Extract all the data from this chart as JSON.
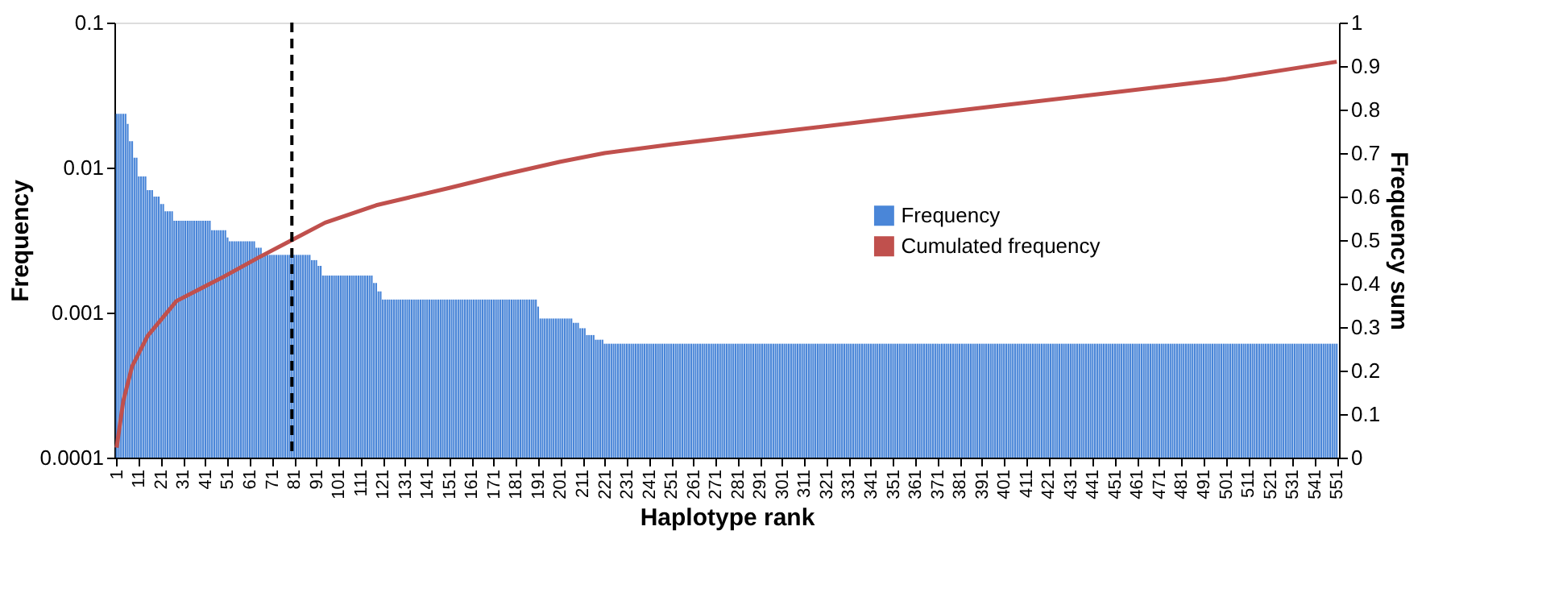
{
  "chart_data": {
    "type": "bar",
    "xlabel": "Haplotype rank",
    "ylabel": "Frequency",
    "y2label": "Frequency sum",
    "xlim": [
      0,
      552
    ],
    "xticks": [
      1,
      11,
      21,
      31,
      41,
      51,
      61,
      71,
      81,
      91,
      101,
      111,
      121,
      131,
      141,
      151,
      161,
      171,
      181,
      191,
      201,
      211,
      221,
      231,
      241,
      251,
      261,
      271,
      281,
      291,
      301,
      311,
      321,
      331,
      341,
      351,
      361,
      371,
      381,
      391,
      401,
      411,
      421,
      431,
      441,
      451,
      461,
      471,
      481,
      491,
      501,
      511,
      521,
      531,
      541,
      551
    ],
    "ylim": [
      0.0001,
      0.1
    ],
    "yticks": [
      0.0001,
      0.001,
      0.01,
      0.1
    ],
    "log": "y",
    "y2lim": [
      0,
      1
    ],
    "y2ticks": [
      0,
      0.1,
      0.2,
      0.3,
      0.4,
      0.5,
      0.6,
      0.7,
      0.8,
      0.9,
      1
    ],
    "grid": false,
    "legend": "right",
    "ref_lines": [
      {
        "axis": "x",
        "value": 80,
        "color": "#000000",
        "line_style": "dashed"
      }
    ],
    "x": [
      1,
      2,
      3,
      4,
      5,
      6,
      7,
      8,
      9,
      10,
      11,
      12,
      13,
      14,
      15,
      16,
      17,
      18,
      19,
      20,
      21,
      22,
      23,
      24,
      25,
      26,
      27,
      28,
      29,
      30,
      31,
      32,
      33,
      34,
      35,
      36,
      37,
      38,
      39,
      40,
      41,
      42,
      43,
      44,
      45,
      46,
      47,
      48,
      49,
      50,
      51,
      52,
      53,
      54,
      55,
      56,
      57,
      58,
      59,
      60,
      61,
      62,
      63,
      64,
      65,
      66,
      67,
      68,
      69,
      70,
      71,
      72,
      73,
      74,
      75,
      76,
      77,
      78,
      79,
      80,
      81,
      82,
      83,
      84,
      85,
      86,
      87,
      88,
      89,
      90,
      91,
      92,
      93,
      94,
      95,
      96,
      97,
      98,
      99,
      100,
      101,
      102,
      103,
      104,
      105,
      106,
      107,
      108,
      109,
      110,
      111,
      112,
      113,
      114,
      115,
      116,
      117,
      118,
      119,
      120,
      121,
      122,
      123,
      124,
      125,
      126,
      127,
      128,
      129,
      130,
      131,
      132,
      133,
      134,
      135,
      136,
      137,
      138,
      139,
      140,
      141,
      142,
      143,
      144,
      145,
      146,
      147,
      148,
      149,
      150,
      151,
      152,
      153,
      154,
      155,
      156,
      157,
      158,
      159,
      160,
      161,
      162,
      163,
      164,
      165,
      166,
      167,
      168,
      169,
      170,
      171,
      172,
      173,
      174,
      175,
      176,
      177,
      178,
      179,
      180,
      181,
      182,
      183,
      184,
      185,
      186,
      187,
      188,
      189,
      190,
      191,
      192,
      193,
      194,
      195,
      196,
      197,
      198,
      199,
      200,
      201,
      202,
      203,
      204,
      205,
      206,
      207,
      208,
      209,
      210,
      211,
      212,
      213,
      214,
      215,
      216,
      217,
      218,
      219,
      220,
      221,
      222,
      223,
      224,
      225,
      226,
      227,
      228,
      229,
      230,
      231,
      232,
      233,
      234,
      235,
      236,
      237,
      238,
      239,
      240,
      241,
      242,
      243,
      244,
      245,
      246,
      247,
      248,
      249,
      250,
      251,
      252,
      253,
      254,
      255,
      256,
      257,
      258,
      259,
      260,
      261,
      262,
      263,
      264,
      265,
      266,
      267,
      268,
      269,
      270,
      271,
      272,
      273,
      274,
      275,
      276,
      277,
      278,
      279,
      280,
      281,
      282,
      283,
      284,
      285,
      286,
      287,
      288,
      289,
      290,
      291,
      292,
      293,
      294,
      295,
      296,
      297,
      298,
      299,
      300,
      301,
      302,
      303,
      304,
      305,
      306,
      307,
      308,
      309,
      310,
      311,
      312,
      313,
      314,
      315,
      316,
      317,
      318,
      319,
      320,
      321,
      322,
      323,
      324,
      325,
      326,
      327,
      328,
      329,
      330,
      331,
      332,
      333,
      334,
      335,
      336,
      337,
      338,
      339,
      340,
      341,
      342,
      343,
      344,
      345,
      346,
      347,
      348,
      349,
      350,
      351,
      352,
      353,
      354,
      355,
      356,
      357,
      358,
      359,
      360,
      361,
      362,
      363,
      364,
      365,
      366,
      367,
      368,
      369,
      370,
      371,
      372,
      373,
      374,
      375,
      376,
      377,
      378,
      379,
      380,
      381,
      382,
      383,
      384,
      385,
      386,
      387,
      388,
      389,
      390,
      391,
      392,
      393,
      394,
      395,
      396,
      397,
      398,
      399,
      400,
      401,
      402,
      403,
      404,
      405,
      406,
      407,
      408,
      409,
      410,
      411,
      412,
      413,
      414,
      415,
      416,
      417,
      418,
      419,
      420,
      421,
      422,
      423,
      424,
      425,
      426,
      427,
      428,
      429,
      430,
      431,
      432,
      433,
      434,
      435,
      436,
      437,
      438,
      439,
      440,
      441,
      442,
      443,
      444,
      445,
      446,
      447,
      448,
      449,
      450,
      451,
      452,
      453,
      454,
      455,
      456,
      457,
      458,
      459,
      460,
      461,
      462,
      463,
      464,
      465,
      466,
      467,
      468,
      469,
      470,
      471,
      472,
      473,
      474,
      475,
      476,
      477,
      478,
      479,
      480,
      481,
      482,
      483,
      484,
      485,
      486,
      487,
      488,
      489,
      490,
      491,
      492,
      493,
      494,
      495,
      496,
      497,
      498,
      499,
      500,
      501,
      502,
      503,
      504,
      505,
      506,
      507,
      508,
      509,
      510,
      511,
      512,
      513,
      514,
      515,
      516,
      517,
      518,
      519,
      520,
      521,
      522,
      523,
      524,
      525,
      526,
      527,
      528,
      529,
      530,
      531,
      532,
      533,
      534,
      535,
      536,
      537,
      538,
      539,
      540,
      541,
      542,
      543,
      544,
      545,
      546,
      547,
      548,
      549,
      550,
      551
    ],
    "series": [
      {
        "name": "Frequency",
        "color": "#4a86d8",
        "values": [
          0.0235,
          0.0235,
          0.0235,
          0.0235,
          0.0235,
          0.02,
          0.0152,
          0.0152,
          0.0117,
          0.0117,
          0.0087,
          0.0087,
          0.0087,
          0.0087,
          0.007,
          0.007,
          0.007,
          0.0063,
          0.0063,
          0.0063,
          0.0056,
          0.0056,
          0.005,
          0.005,
          0.005,
          0.005,
          0.0043,
          0.0043,
          0.0043,
          0.0043,
          0.0043,
          0.0043,
          0.0043,
          0.0043,
          0.0043,
          0.0043,
          0.0043,
          0.0043,
          0.0043,
          0.0043,
          0.0043,
          0.0043,
          0.0043,
          0.0037,
          0.0037,
          0.0037,
          0.0037,
          0.0037,
          0.0037,
          0.0037,
          0.0033,
          0.0031,
          0.0031,
          0.0031,
          0.0031,
          0.0031,
          0.0031,
          0.0031,
          0.0031,
          0.0031,
          0.0031,
          0.0031,
          0.0031,
          0.0028,
          0.0028,
          0.0028,
          0.0025,
          0.0025,
          0.0025,
          0.0025,
          0.0025,
          0.0025,
          0.0025,
          0.0025,
          0.0025,
          0.0025,
          0.0025,
          0.0025,
          0.0025,
          0.0025,
          0.0025,
          0.0025,
          0.0025,
          0.0025,
          0.0025,
          0.0025,
          0.0025,
          0.0025,
          0.0023,
          0.0023,
          0.0023,
          0.0021,
          0.0021,
          0.0018,
          0.0018,
          0.0018,
          0.0018,
          0.0018,
          0.0018,
          0.0018,
          0.0018,
          0.0018,
          0.0018,
          0.0018,
          0.0018,
          0.0018,
          0.0018,
          0.0018,
          0.0018,
          0.0018,
          0.0018,
          0.0018,
          0.0018,
          0.0018,
          0.0018,
          0.0018,
          0.0016,
          0.0016,
          0.0014,
          0.0014,
          0.00123,
          0.00123,
          0.00123,
          0.00123,
          0.00123,
          0.00123,
          0.00123,
          0.00123,
          0.00123,
          0.00123,
          0.00123,
          0.00123,
          0.00123,
          0.00123,
          0.00123,
          0.00123,
          0.00123,
          0.00123,
          0.00123,
          0.00123,
          0.00123,
          0.00123,
          0.00123,
          0.00123,
          0.00123,
          0.00123,
          0.00123,
          0.00123,
          0.00123,
          0.00123,
          0.00123,
          0.00123,
          0.00123,
          0.00123,
          0.00123,
          0.00123,
          0.00123,
          0.00123,
          0.00123,
          0.00123,
          0.00123,
          0.00123,
          0.00123,
          0.00123,
          0.00123,
          0.00123,
          0.00123,
          0.00123,
          0.00123,
          0.00123,
          0.00123,
          0.00123,
          0.00123,
          0.00123,
          0.00123,
          0.00123,
          0.00123,
          0.00123,
          0.00123,
          0.00123,
          0.00123,
          0.00123,
          0.00123,
          0.00123,
          0.00123,
          0.00123,
          0.00123,
          0.00123,
          0.00123,
          0.00123,
          0.0011,
          0.00091,
          0.00091,
          0.00091,
          0.00091,
          0.00091,
          0.00091,
          0.00091,
          0.00091,
          0.00091,
          0.00091,
          0.00091,
          0.00091,
          0.00091,
          0.00091,
          0.00091,
          0.00085,
          0.00085,
          0.00085,
          0.00078,
          0.00078,
          0.00078,
          0.0007,
          0.0007,
          0.0007,
          0.0007,
          0.00065,
          0.00065,
          0.00065,
          0.00065,
          0.00061,
          0.00061,
          0.00061,
          0.00061,
          0.00061,
          0.00061,
          0.00061,
          0.00061,
          0.00061,
          0.00061,
          0.00061,
          0.00061,
          0.00061,
          0.00061,
          0.00061,
          0.00061,
          0.00061,
          0.00061,
          0.00061,
          0.00061,
          0.00061,
          0.00061,
          0.00061,
          0.00061,
          0.00061,
          0.00061,
          0.00061,
          0.00061,
          0.00061,
          0.00061,
          0.00061,
          0.00061,
          0.00061,
          0.00061,
          0.00061,
          0.00061,
          0.00061,
          0.00061,
          0.00061,
          0.00061,
          0.00061,
          0.00061,
          0.00061,
          0.00061,
          0.00061,
          0.00061,
          0.00061,
          0.00061,
          0.00061,
          0.00061,
          0.00061,
          0.00061,
          0.00061,
          0.00061,
          0.00061,
          0.00061,
          0.00061,
          0.00061,
          0.00061,
          0.00061,
          0.00061,
          0.00061,
          0.00061,
          0.00061,
          0.00061,
          0.00061,
          0.00061,
          0.00061,
          0.00061,
          0.00061,
          0.00061,
          0.00061,
          0.00061,
          0.00061,
          0.00061,
          0.00061,
          0.00061,
          0.00061,
          0.00061,
          0.00061,
          0.00061,
          0.00061,
          0.00061,
          0.00061,
          0.00061,
          0.00061,
          0.00061,
          0.00061,
          0.00061,
          0.00061,
          0.00061,
          0.00061,
          0.00061,
          0.00061,
          0.00061,
          0.00061,
          0.00061,
          0.00061,
          0.00061,
          0.00061,
          0.00061,
          0.00061,
          0.00061,
          0.00061,
          0.00061,
          0.00061,
          0.00061,
          0.00061,
          0.00061,
          0.00061,
          0.00061,
          0.00061,
          0.00061,
          0.00061,
          0.00061,
          0.00061,
          0.00061,
          0.00061,
          0.00061,
          0.00061,
          0.00061,
          0.00061,
          0.00061,
          0.00061,
          0.00061,
          0.00061,
          0.00061,
          0.00061,
          0.00061,
          0.00061,
          0.00061,
          0.00061,
          0.00061,
          0.00061,
          0.00061,
          0.00061,
          0.00061,
          0.00061,
          0.00061,
          0.00061,
          0.00061,
          0.00061,
          0.00061,
          0.00061,
          0.00061,
          0.00061,
          0.00061,
          0.00061,
          0.00061,
          0.00061,
          0.00061,
          0.00061,
          0.00061,
          0.00061,
          0.00061,
          0.00061,
          0.00061,
          0.00061,
          0.00061,
          0.00061,
          0.00061,
          0.00061,
          0.00061,
          0.00061,
          0.00061,
          0.00061,
          0.00061,
          0.00061,
          0.00061,
          0.00061,
          0.00061,
          0.00061,
          0.00061,
          0.00061,
          0.00061,
          0.00061,
          0.00061,
          0.00061,
          0.00061,
          0.00061,
          0.00061,
          0.00061,
          0.00061,
          0.00061,
          0.00061,
          0.00061,
          0.00061,
          0.00061,
          0.00061,
          0.00061,
          0.00061,
          0.00061,
          0.00061,
          0.00061,
          0.00061,
          0.00061,
          0.00061,
          0.00061,
          0.00061,
          0.00061,
          0.00061,
          0.00061,
          0.00061,
          0.00061,
          0.00061,
          0.00061,
          0.00061,
          0.00061,
          0.00061,
          0.00061,
          0.00061,
          0.00061,
          0.00061,
          0.00061,
          0.00061,
          0.00061,
          0.00061,
          0.00061,
          0.00061,
          0.00061,
          0.00061,
          0.00061,
          0.00061,
          0.00061,
          0.00061,
          0.00061,
          0.00061,
          0.00061,
          0.00061,
          0.00061,
          0.00061,
          0.00061,
          0.00061,
          0.00061,
          0.00061,
          0.00061,
          0.00061,
          0.00061,
          0.00061,
          0.00061,
          0.00061,
          0.00061,
          0.00061,
          0.00061,
          0.00061,
          0.00061,
          0.00061,
          0.00061,
          0.00061,
          0.00061,
          0.00061,
          0.00061,
          0.00061,
          0.00061,
          0.00061,
          0.00061,
          0.00061,
          0.00061,
          0.00061,
          0.00061,
          0.00061,
          0.00061,
          0.00061,
          0.00061,
          0.00061,
          0.00061,
          0.00061,
          0.00061,
          0.00061,
          0.00061,
          0.00061,
          0.00061,
          0.00061,
          0.00061,
          0.00061,
          0.00061,
          0.00061,
          0.00061,
          0.00061,
          0.00061,
          0.00061,
          0.00061,
          0.00061,
          0.00061,
          0.00061,
          0.00061,
          0.00061,
          0.00061,
          0.00061,
          0.00061,
          0.00061,
          0.00061,
          0.00061,
          0.00061,
          0.00061,
          0.00061,
          0.00061,
          0.00061,
          0.00061,
          0.00061,
          0.00061,
          0.00061,
          0.00061,
          0.00061,
          0.00061,
          0.00061,
          0.00061,
          0.00061,
          0.00061,
          0.00061,
          0.00061,
          0.00061,
          0.00061,
          0.00061,
          0.00061,
          0.00061,
          0.00061,
          0.00061,
          0.00061,
          0.00061,
          0.00061,
          0.00061,
          0.00061,
          0.00061,
          0.00061,
          0.00061,
          0.00061,
          0.00061,
          0.00061,
          0.00061,
          0.00061
        ]
      },
      {
        "name": "Cumulated frequency",
        "type": "line",
        "axis": "y2",
        "color": "#c0504d",
        "x": [
          1,
          4,
          8,
          15,
          28,
          49,
          65,
          80,
          95,
          118,
          151,
          175,
          201,
          221,
          251,
          301,
          351,
          401,
          451,
          501,
          551
        ],
        "values": [
          0.023,
          0.13,
          0.21,
          0.28,
          0.36,
          0.415,
          0.46,
          0.5,
          0.54,
          0.58,
          0.62,
          0.65,
          0.68,
          0.7,
          0.72,
          0.75,
          0.78,
          0.81,
          0.84,
          0.87,
          0.91
        ]
      }
    ]
  }
}
